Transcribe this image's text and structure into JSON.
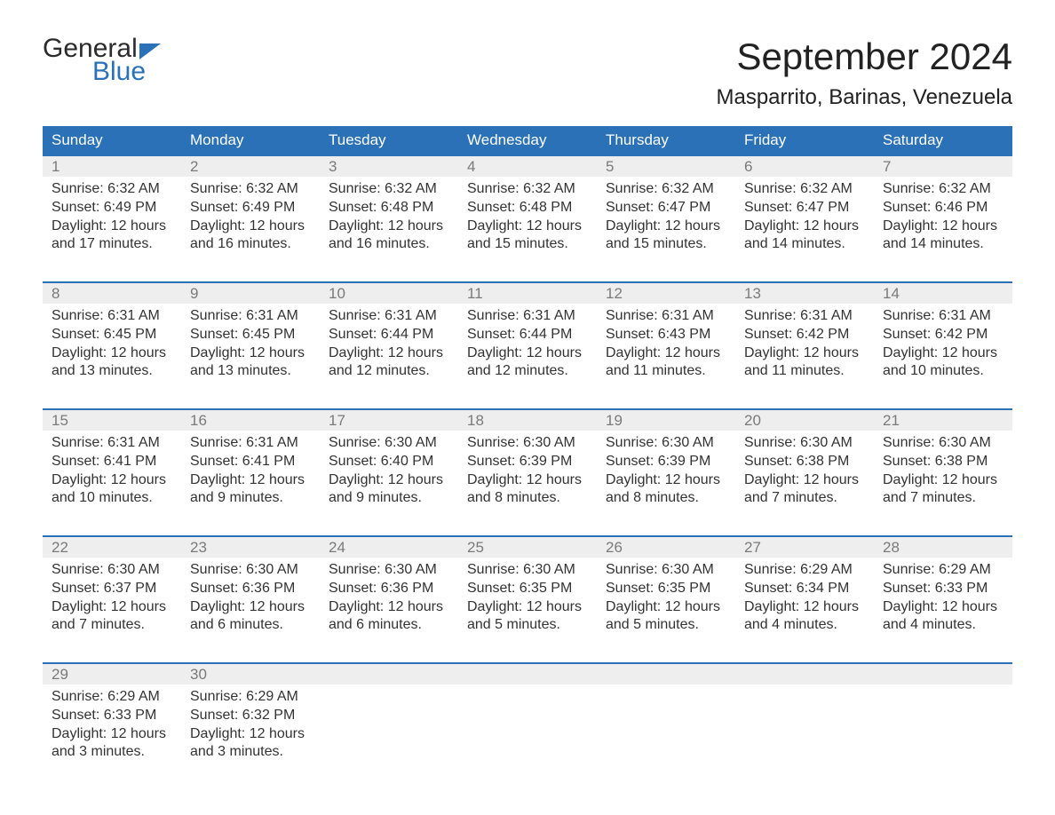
{
  "brand": {
    "word1": "General",
    "word2": "Blue"
  },
  "title": "September 2024",
  "location": "Masparrito, Barinas, Venezuela",
  "colors": {
    "header_bg": "#2a71b8",
    "header_fg": "#ffffff",
    "daynum_bg": "#eeeeee",
    "daynum_fg": "#7a7a7a",
    "rule": "#2a71b8",
    "page_bg": "#ffffff",
    "text": "#333333"
  },
  "day_headers": [
    "Sunday",
    "Monday",
    "Tuesday",
    "Wednesday",
    "Thursday",
    "Friday",
    "Saturday"
  ],
  "weeks": [
    [
      {
        "n": "1",
        "sunrise": "6:32 AM",
        "sunset": "6:49 PM",
        "daylight": "12 hours and 17 minutes."
      },
      {
        "n": "2",
        "sunrise": "6:32 AM",
        "sunset": "6:49 PM",
        "daylight": "12 hours and 16 minutes."
      },
      {
        "n": "3",
        "sunrise": "6:32 AM",
        "sunset": "6:48 PM",
        "daylight": "12 hours and 16 minutes."
      },
      {
        "n": "4",
        "sunrise": "6:32 AM",
        "sunset": "6:48 PM",
        "daylight": "12 hours and 15 minutes."
      },
      {
        "n": "5",
        "sunrise": "6:32 AM",
        "sunset": "6:47 PM",
        "daylight": "12 hours and 15 minutes."
      },
      {
        "n": "6",
        "sunrise": "6:32 AM",
        "sunset": "6:47 PM",
        "daylight": "12 hours and 14 minutes."
      },
      {
        "n": "7",
        "sunrise": "6:32 AM",
        "sunset": "6:46 PM",
        "daylight": "12 hours and 14 minutes."
      }
    ],
    [
      {
        "n": "8",
        "sunrise": "6:31 AM",
        "sunset": "6:45 PM",
        "daylight": "12 hours and 13 minutes."
      },
      {
        "n": "9",
        "sunrise": "6:31 AM",
        "sunset": "6:45 PM",
        "daylight": "12 hours and 13 minutes."
      },
      {
        "n": "10",
        "sunrise": "6:31 AM",
        "sunset": "6:44 PM",
        "daylight": "12 hours and 12 minutes."
      },
      {
        "n": "11",
        "sunrise": "6:31 AM",
        "sunset": "6:44 PM",
        "daylight": "12 hours and 12 minutes."
      },
      {
        "n": "12",
        "sunrise": "6:31 AM",
        "sunset": "6:43 PM",
        "daylight": "12 hours and 11 minutes."
      },
      {
        "n": "13",
        "sunrise": "6:31 AM",
        "sunset": "6:42 PM",
        "daylight": "12 hours and 11 minutes."
      },
      {
        "n": "14",
        "sunrise": "6:31 AM",
        "sunset": "6:42 PM",
        "daylight": "12 hours and 10 minutes."
      }
    ],
    [
      {
        "n": "15",
        "sunrise": "6:31 AM",
        "sunset": "6:41 PM",
        "daylight": "12 hours and 10 minutes."
      },
      {
        "n": "16",
        "sunrise": "6:31 AM",
        "sunset": "6:41 PM",
        "daylight": "12 hours and 9 minutes."
      },
      {
        "n": "17",
        "sunrise": "6:30 AM",
        "sunset": "6:40 PM",
        "daylight": "12 hours and 9 minutes."
      },
      {
        "n": "18",
        "sunrise": "6:30 AM",
        "sunset": "6:39 PM",
        "daylight": "12 hours and 8 minutes."
      },
      {
        "n": "19",
        "sunrise": "6:30 AM",
        "sunset": "6:39 PM",
        "daylight": "12 hours and 8 minutes."
      },
      {
        "n": "20",
        "sunrise": "6:30 AM",
        "sunset": "6:38 PM",
        "daylight": "12 hours and 7 minutes."
      },
      {
        "n": "21",
        "sunrise": "6:30 AM",
        "sunset": "6:38 PM",
        "daylight": "12 hours and 7 minutes."
      }
    ],
    [
      {
        "n": "22",
        "sunrise": "6:30 AM",
        "sunset": "6:37 PM",
        "daylight": "12 hours and 7 minutes."
      },
      {
        "n": "23",
        "sunrise": "6:30 AM",
        "sunset": "6:36 PM",
        "daylight": "12 hours and 6 minutes."
      },
      {
        "n": "24",
        "sunrise": "6:30 AM",
        "sunset": "6:36 PM",
        "daylight": "12 hours and 6 minutes."
      },
      {
        "n": "25",
        "sunrise": "6:30 AM",
        "sunset": "6:35 PM",
        "daylight": "12 hours and 5 minutes."
      },
      {
        "n": "26",
        "sunrise": "6:30 AM",
        "sunset": "6:35 PM",
        "daylight": "12 hours and 5 minutes."
      },
      {
        "n": "27",
        "sunrise": "6:29 AM",
        "sunset": "6:34 PM",
        "daylight": "12 hours and 4 minutes."
      },
      {
        "n": "28",
        "sunrise": "6:29 AM",
        "sunset": "6:33 PM",
        "daylight": "12 hours and 4 minutes."
      }
    ],
    [
      {
        "n": "29",
        "sunrise": "6:29 AM",
        "sunset": "6:33 PM",
        "daylight": "12 hours and 3 minutes."
      },
      {
        "n": "30",
        "sunrise": "6:29 AM",
        "sunset": "6:32 PM",
        "daylight": "12 hours and 3 minutes."
      },
      null,
      null,
      null,
      null,
      null
    ]
  ],
  "labels": {
    "sunrise": "Sunrise: ",
    "sunset": "Sunset: ",
    "daylight": "Daylight: "
  }
}
